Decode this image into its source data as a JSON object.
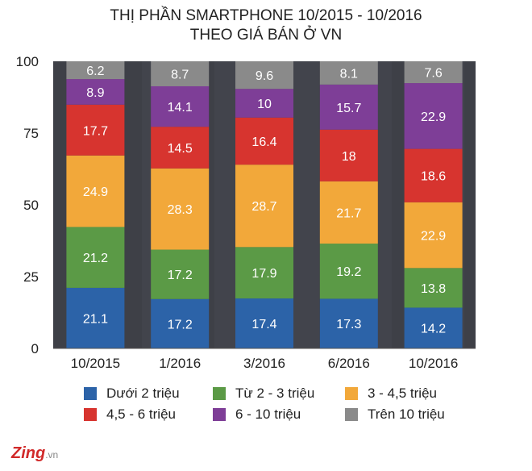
{
  "chart_data": {
    "type": "bar",
    "stacked": true,
    "title": [
      "THỊ PHẦN SMARTPHONE 10/2015 - 10/2016",
      "THEO GIÁ BÁN Ở VN"
    ],
    "categories": [
      "10/2015",
      "1/2016",
      "3/2016",
      "6/2016",
      "10/2016"
    ],
    "ylim": [
      0,
      100
    ],
    "yticks": [
      "0",
      "25",
      "50",
      "75",
      "100"
    ],
    "series": [
      {
        "name": "Dưới 2 triệu",
        "color": "#2c63a8",
        "values": [
          21.1,
          17.2,
          17.4,
          17.3,
          14.2
        ]
      },
      {
        "name": "Từ 2 - 3 triệu",
        "color": "#5b9a46",
        "values": [
          21.2,
          17.2,
          17.9,
          19.2,
          13.8
        ]
      },
      {
        "name": "3 - 4,5 triệu",
        "color": "#f2a83a",
        "values": [
          24.9,
          28.3,
          28.7,
          21.7,
          22.9
        ]
      },
      {
        "name": "4,5 - 6 triệu",
        "color": "#d7342f",
        "values": [
          17.7,
          14.5,
          16.4,
          18,
          18.6
        ]
      },
      {
        "name": "6 - 10 triệu",
        "color": "#7e3e97",
        "values": [
          8.9,
          14.1,
          10,
          15.7,
          22.9
        ]
      },
      {
        "name": "Trên 10 triệu",
        "color": "#8a8a8a",
        "values": [
          6.2,
          8.7,
          9.6,
          8.1,
          7.6
        ]
      }
    ],
    "legend_position": "bottom",
    "background_color": "#3e4047"
  },
  "watermark": {
    "brand": "Zing",
    "suffix": ".vn",
    "color": "#d12a2a"
  }
}
